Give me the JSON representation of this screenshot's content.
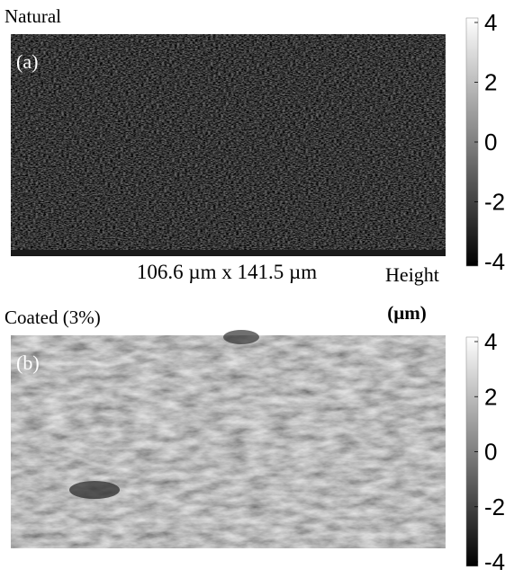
{
  "panels": [
    {
      "title": "Natural",
      "label": "(a)"
    },
    {
      "title": "Coated (3%)",
      "label": "(b)"
    }
  ],
  "scale_text": "106.6 µm x 141.5 µm",
  "colorbar": {
    "title": "Height",
    "unit": "(µm)",
    "lim": [
      -4,
      4
    ],
    "ticks": [
      4,
      2,
      0,
      -2,
      -4
    ]
  }
}
